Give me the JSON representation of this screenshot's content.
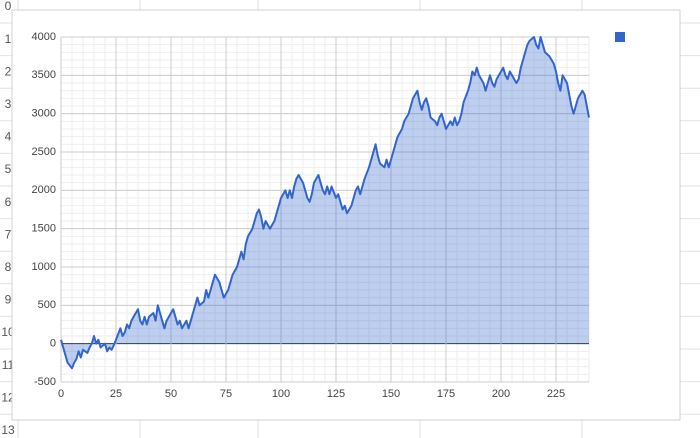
{
  "sheet": {
    "row_numbers": [
      "0",
      "1",
      "2",
      "3",
      "4",
      "5",
      "6",
      "7",
      "8",
      "9",
      "10",
      "11",
      "12",
      "13"
    ]
  },
  "chart_data": {
    "type": "area",
    "color": "#3366cc",
    "grid": true,
    "xlim": [
      0,
      240
    ],
    "xticks": [
      0,
      25,
      50,
      75,
      100,
      125,
      150,
      175,
      200,
      225
    ],
    "ylim": [
      -500,
      4000
    ],
    "yticks": [
      -500,
      0,
      500,
      1000,
      1500,
      2000,
      2500,
      3000,
      3500,
      4000
    ],
    "x": [
      0,
      1,
      2,
      3,
      5,
      6,
      7,
      8,
      9,
      10,
      12,
      13,
      14,
      15,
      16,
      17,
      18,
      20,
      21,
      22,
      23,
      24,
      25,
      27,
      28,
      29,
      30,
      31,
      32,
      33,
      35,
      36,
      37,
      38,
      39,
      40,
      42,
      43,
      44,
      45,
      46,
      47,
      48,
      50,
      51,
      52,
      53,
      54,
      55,
      57,
      58,
      59,
      60,
      61,
      62,
      63,
      65,
      66,
      67,
      68,
      69,
      70,
      72,
      73,
      74,
      75,
      76,
      77,
      78,
      80,
      81,
      82,
      83,
      84,
      85,
      87,
      88,
      89,
      90,
      91,
      92,
      93,
      95,
      96,
      97,
      98,
      99,
      100,
      102,
      103,
      104,
      105,
      106,
      107,
      108,
      110,
      111,
      112,
      113,
      114,
      115,
      117,
      118,
      119,
      120,
      121,
      122,
      123,
      125,
      126,
      127,
      128,
      129,
      130,
      132,
      133,
      134,
      135,
      136,
      137,
      138,
      140,
      141,
      142,
      143,
      144,
      145,
      147,
      148,
      149,
      150,
      151,
      152,
      153,
      155,
      156,
      157,
      158,
      159,
      160,
      162,
      163,
      164,
      165,
      166,
      167,
      168,
      170,
      171,
      172,
      173,
      174,
      175,
      177,
      178,
      179,
      180,
      181,
      182,
      183,
      185,
      186,
      187,
      188,
      189,
      190,
      192,
      193,
      194,
      195,
      196,
      197,
      198,
      200,
      201,
      202,
      203,
      204,
      205,
      207,
      208,
      209,
      210,
      211,
      212,
      213,
      215,
      216,
      217,
      218,
      219,
      220,
      222,
      223,
      224,
      225,
      226,
      227,
      228,
      230,
      231,
      232,
      233,
      234,
      235,
      237,
      238,
      239,
      240
    ],
    "values": [
      50,
      -50,
      -150,
      -250,
      -320,
      -250,
      -200,
      -100,
      -180,
      -80,
      -120,
      -50,
      0,
      100,
      0,
      50,
      -50,
      0,
      -100,
      -50,
      -80,
      -20,
      50,
      200,
      100,
      150,
      250,
      200,
      300,
      350,
      450,
      300,
      250,
      350,
      250,
      350,
      400,
      300,
      500,
      400,
      300,
      200,
      300,
      400,
      450,
      350,
      250,
      300,
      200,
      300,
      200,
      300,
      400,
      500,
      600,
      500,
      550,
      700,
      600,
      700,
      800,
      900,
      800,
      700,
      600,
      650,
      700,
      800,
      900,
      1000,
      1100,
      1200,
      1100,
      1300,
      1400,
      1500,
      1600,
      1700,
      1750,
      1650,
      1500,
      1600,
      1500,
      1550,
      1600,
      1700,
      1800,
      1900,
      2000,
      1900,
      2000,
      1900,
      2050,
      2150,
      2200,
      2100,
      2000,
      1900,
      1850,
      1950,
      2100,
      2200,
      2100,
      2000,
      1950,
      2050,
      1950,
      2050,
      1900,
      1950,
      1850,
      1750,
      1800,
      1700,
      1800,
      1900,
      2000,
      2050,
      1950,
      2050,
      2150,
      2300,
      2400,
      2500,
      2600,
      2450,
      2350,
      2300,
      2400,
      2300,
      2400,
      2500,
      2600,
      2700,
      2800,
      2900,
      2950,
      3000,
      3100,
      3200,
      3300,
      3150,
      3050,
      3150,
      3200,
      3100,
      2950,
      2900,
      2850,
      2950,
      3000,
      2900,
      2800,
      2900,
      2850,
      2950,
      2850,
      2900,
      3000,
      3150,
      3300,
      3400,
      3550,
      3500,
      3600,
      3500,
      3400,
      3300,
      3400,
      3500,
      3400,
      3350,
      3450,
      3550,
      3600,
      3500,
      3450,
      3550,
      3500,
      3400,
      3450,
      3600,
      3700,
      3800,
      3900,
      3950,
      4000,
      3900,
      3850,
      4000,
      3900,
      3800,
      3750,
      3700,
      3650,
      3550,
      3400,
      3300,
      3500,
      3400,
      3250,
      3100,
      3000,
      3100,
      3200,
      3300,
      3250,
      3100,
      2950
    ]
  }
}
